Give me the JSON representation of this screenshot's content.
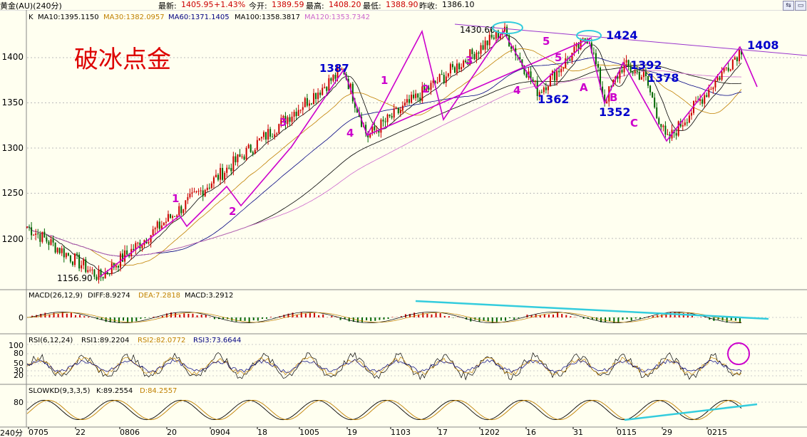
{
  "header": {
    "title": "黄金(AU)(240分)",
    "latest_label": "最新:",
    "latest": "1405.95",
    "change": "+1.43%",
    "open_label": "今开:",
    "open": "1389.59",
    "high_label": "最高:",
    "high": "1408.20",
    "low_label": "最低:",
    "low": "1388.90",
    "prev_label": "昨收:",
    "prev": "1386.10"
  },
  "main_panel": {
    "indicator_name": "K",
    "ma": [
      {
        "label": "MA10:1395.1150",
        "color": "#000000"
      },
      {
        "label": "MA30:1382.0957",
        "color": "#c08000"
      },
      {
        "label": "MA60:1371.1405",
        "color": "#000080"
      },
      {
        "label": "MA100:1358.3817",
        "color": "#000000"
      },
      {
        "label": "MA120:1353.7342",
        "color": "#cc66cc"
      }
    ],
    "y_ticks": [
      "1400",
      "1350",
      "1300",
      "1250",
      "1200"
    ],
    "watermark": "破冰点金",
    "low_label": "1156.90",
    "high_label": "1430.66"
  },
  "macd_panel": {
    "title": "MACD(26,12,9)",
    "diff": "DIFF:8.9274",
    "dea": "DEA:7.2818",
    "macd": "MACD:3.2912",
    "y_ticks": [
      "0"
    ]
  },
  "rsi_panel": {
    "title": "RSI(6,12,24)",
    "rsi1": "RSI1:89.2204",
    "rsi2": "RSI2:82.0772",
    "rsi3": "RSI3:73.6644",
    "y_ticks": [
      "100",
      "80",
      "50",
      "30",
      "20"
    ]
  },
  "kd_panel": {
    "title": "SLOWKD(9,3,3,5)",
    "k": "K:89.2554",
    "d": "D:84.2557",
    "y_ticks": [
      "80"
    ]
  },
  "x_axis": {
    "period": "240分",
    "ticks": [
      "0705",
      "22",
      "0806",
      "20",
      "0904",
      "18",
      "1005",
      "19",
      "1103",
      "17",
      "1202",
      "16",
      "31",
      "0115",
      "29",
      "0215"
    ]
  },
  "annotations": [
    {
      "text": "1",
      "color": "#cc00cc"
    },
    {
      "text": "2",
      "color": "#cc00cc"
    },
    {
      "text": "3",
      "color": "#cc00cc"
    },
    {
      "text": "1387",
      "color": "#0000cc"
    },
    {
      "text": "4",
      "color": "#cc00cc"
    },
    {
      "text": "1",
      "color": "#cc00cc"
    },
    {
      "text": "2",
      "color": "#cc00cc"
    },
    {
      "text": "3",
      "color": "#cc00cc"
    },
    {
      "text": "4",
      "color": "#cc00cc"
    },
    {
      "text": "5",
      "color": "#cc00cc"
    },
    {
      "text": "5",
      "color": "#cc00cc"
    },
    {
      "text": "1362",
      "color": "#0000cc"
    },
    {
      "text": "1424",
      "color": "#0000cc"
    },
    {
      "text": "A",
      "color": "#cc00cc"
    },
    {
      "text": "B",
      "color": "#cc00cc"
    },
    {
      "text": "1352",
      "color": "#0000cc"
    },
    {
      "text": "1392",
      "color": "#0000cc"
    },
    {
      "text": "1378",
      "color": "#0000cc"
    },
    {
      "text": "C",
      "color": "#cc00cc"
    },
    {
      "text": "1408",
      "color": "#0000cc"
    }
  ],
  "colors": {
    "up": "#cc0000",
    "down": "#006600",
    "wave": "#cc00cc",
    "trend": "#33ccdd",
    "label": "#0000cc",
    "watermark": "#dd0000"
  },
  "chart_data": {
    "type": "candlestick",
    "y_range": [
      1150,
      1440
    ],
    "pivots": [
      {
        "name": "start",
        "value": 1213
      },
      {
        "name": "low",
        "value": 1157
      },
      {
        "name": "1387",
        "value": 1387
      },
      {
        "name": "4",
        "value": 1313
      },
      {
        "name": "1430.66",
        "value": 1430.66
      },
      {
        "name": "1362",
        "value": 1362
      },
      {
        "name": "1424",
        "value": 1424
      },
      {
        "name": "1352",
        "value": 1352
      },
      {
        "name": "1392",
        "value": 1392
      },
      {
        "name": "1378",
        "value": 1378
      },
      {
        "name": "C",
        "value": 1307
      },
      {
        "name": "1408",
        "value": 1408
      }
    ]
  }
}
